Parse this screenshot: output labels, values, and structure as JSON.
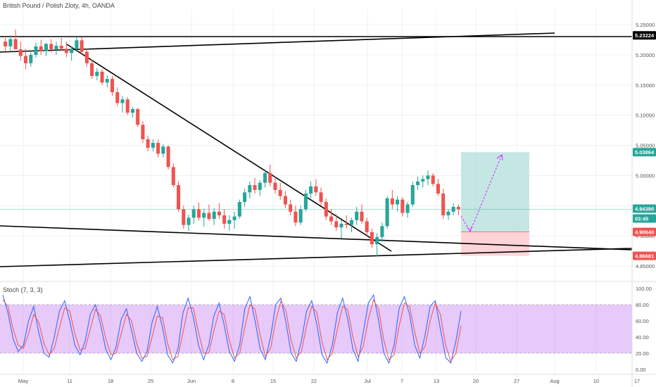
{
  "header": {
    "title": "British Pound / Polish Zloty, 4h, OANDA"
  },
  "indicator": {
    "title": "Stoch (7, 3, 3)"
  },
  "colors": {
    "up": "#26a69a",
    "down": "#ef5350",
    "trendline": "#000000",
    "stoch_k": "#2962ff",
    "stoch_d": "#ef5350",
    "stoch_band": "#c987f5",
    "target_zone": "#b2dfdb",
    "stop_zone": "#ffcdd2",
    "arrow": "#e040fb",
    "price_line": "#26a69a"
  },
  "chart_data": [
    {
      "type": "candlestick",
      "title": "",
      "xlabel": "",
      "ylabel": "",
      "x_ticks": [
        "May",
        "11",
        "18",
        "25",
        "Jun",
        "8",
        "15",
        "22",
        "Jul",
        "7",
        "13",
        "20",
        "27",
        "Aug",
        "10",
        "17"
      ],
      "y_ticks": [
        "5.25000",
        "5.20000",
        "5.15000",
        "5.10000",
        "5.05000",
        "5.00000",
        "4.95000",
        "4.90000",
        "4.85000"
      ],
      "ylim": [
        4.845,
        5.255
      ],
      "price_tags": [
        {
          "value": 5.23224,
          "label": "5.23224",
          "color": "#000000"
        },
        {
          "value": 5.03864,
          "label": "5.03864",
          "color": "#26a69a"
        },
        {
          "value": 4.9439,
          "label": "4.94390",
          "color": "#26a69a"
        },
        {
          "value": 4.9439,
          "label": "03:45",
          "color": "#26a69a"
        },
        {
          "value": 4.9064,
          "label": "4.90640",
          "color": "#ef5350"
        },
        {
          "value": 4.86681,
          "label": "4.86681",
          "color": "#ef5350"
        }
      ],
      "series": [
        {
          "values": [
            [
              5.222,
              5.228,
              5.205,
              5.214
            ],
            [
              5.214,
              5.232,
              5.206,
              5.226
            ],
            [
              5.226,
              5.242,
              5.215,
              5.209
            ],
            [
              5.209,
              5.222,
              5.19,
              5.198
            ],
            [
              5.198,
              5.21,
              5.176,
              5.186
            ],
            [
              5.186,
              5.204,
              5.18,
              5.2
            ],
            [
              5.2,
              5.22,
              5.195,
              5.214
            ],
            [
              5.214,
              5.225,
              5.2,
              5.206
            ],
            [
              5.206,
              5.22,
              5.198,
              5.218
            ],
            [
              5.218,
              5.226,
              5.204,
              5.209
            ],
            [
              5.209,
              5.222,
              5.2,
              5.215
            ],
            [
              5.215,
              5.228,
              5.206,
              5.21
            ],
            [
              5.21,
              5.222,
              5.196,
              5.203
            ],
            [
              5.203,
              5.214,
              5.19,
              5.21
            ],
            [
              5.21,
              5.23,
              5.205,
              5.224
            ],
            [
              5.224,
              5.229,
              5.2,
              5.205
            ],
            [
              5.205,
              5.21,
              5.18,
              5.186
            ],
            [
              5.186,
              5.192,
              5.16,
              5.165
            ],
            [
              5.165,
              5.178,
              5.158,
              5.172
            ],
            [
              5.172,
              5.176,
              5.15,
              5.154
            ],
            [
              5.154,
              5.166,
              5.146,
              5.16
            ],
            [
              5.16,
              5.165,
              5.132,
              5.138
            ],
            [
              5.138,
              5.146,
              5.115,
              5.12
            ],
            [
              5.12,
              5.132,
              5.104,
              5.126
            ],
            [
              5.126,
              5.13,
              5.1,
              5.104
            ],
            [
              5.104,
              5.114,
              5.096,
              5.11
            ],
            [
              5.11,
              5.112,
              5.08,
              5.084
            ],
            [
              5.084,
              5.09,
              5.054,
              5.06
            ],
            [
              5.06,
              5.066,
              5.04,
              5.046
            ],
            [
              5.046,
              5.06,
              5.04,
              5.054
            ],
            [
              5.054,
              5.06,
              5.03,
              5.036
            ],
            [
              5.036,
              5.052,
              5.03,
              5.048
            ],
            [
              5.048,
              5.05,
              5.01,
              5.014
            ],
            [
              5.014,
              5.02,
              4.98,
              4.984
            ],
            [
              4.984,
              4.99,
              4.94,
              4.944
            ],
            [
              4.944,
              4.95,
              4.912,
              4.918
            ],
            [
              4.918,
              4.935,
              4.908,
              4.93
            ],
            [
              4.93,
              4.95,
              4.92,
              4.944
            ],
            [
              4.944,
              4.955,
              4.925,
              4.93
            ],
            [
              4.93,
              4.945,
              4.915,
              4.938
            ],
            [
              4.938,
              4.952,
              4.925,
              4.928
            ],
            [
              4.928,
              4.946,
              4.918,
              4.94
            ],
            [
              4.94,
              4.954,
              4.928,
              4.934
            ],
            [
              4.934,
              4.944,
              4.912,
              4.92
            ],
            [
              4.92,
              4.934,
              4.908,
              4.926
            ],
            [
              4.926,
              4.94,
              4.912,
              4.932
            ],
            [
              4.932,
              4.96,
              4.928,
              4.956
            ],
            [
              4.956,
              4.978,
              4.948,
              4.972
            ],
            [
              4.972,
              4.99,
              4.962,
              4.984
            ],
            [
              4.984,
              4.996,
              4.97,
              4.976
            ],
            [
              4.976,
              4.992,
              4.966,
              4.988
            ],
            [
              4.988,
              5.01,
              4.98,
              5.004
            ],
            [
              5.004,
              5.018,
              4.982,
              4.988
            ],
            [
              4.988,
              4.998,
              4.97,
              4.976
            ],
            [
              4.976,
              4.988,
              4.96,
              4.966
            ],
            [
              4.966,
              4.974,
              4.946,
              4.952
            ],
            [
              4.952,
              4.96,
              4.934,
              4.94
            ],
            [
              4.94,
              4.95,
              4.916,
              4.922
            ],
            [
              4.922,
              4.95,
              4.918,
              4.944
            ],
            [
              4.944,
              4.976,
              4.94,
              4.97
            ],
            [
              4.97,
              4.99,
              4.962,
              4.982
            ],
            [
              4.982,
              4.994,
              4.966,
              4.972
            ],
            [
              4.972,
              4.98,
              4.95,
              4.956
            ],
            [
              4.956,
              4.962,
              4.926,
              4.932
            ],
            [
              4.932,
              4.944,
              4.918,
              4.924
            ],
            [
              4.924,
              4.936,
              4.908,
              4.914
            ],
            [
              4.914,
              4.926,
              4.896,
              4.92
            ],
            [
              4.92,
              4.934,
              4.912,
              4.918
            ],
            [
              4.918,
              4.93,
              4.906,
              4.926
            ],
            [
              4.926,
              4.948,
              4.918,
              4.94
            ],
            [
              4.94,
              4.952,
              4.92,
              4.924
            ],
            [
              4.924,
              4.93,
              4.9,
              4.906
            ],
            [
              4.906,
              4.912,
              4.88,
              4.886
            ],
            [
              4.886,
              4.904,
              4.866,
              4.898
            ],
            [
              4.898,
              4.922,
              4.89,
              4.916
            ],
            [
              4.916,
              4.966,
              4.912,
              4.962
            ],
            [
              4.962,
              4.976,
              4.944,
              4.952
            ],
            [
              4.952,
              4.966,
              4.94,
              4.96
            ],
            [
              4.96,
              4.964,
              4.932,
              4.938
            ],
            [
              4.938,
              4.956,
              4.93,
              4.952
            ],
            [
              4.952,
              4.99,
              4.948,
              4.984
            ],
            [
              4.984,
              4.998,
              4.976,
              4.99
            ],
            [
              4.99,
              5.0,
              4.98,
              4.994
            ],
            [
              4.994,
              5.008,
              4.984,
              5.0
            ],
            [
              5.0,
              5.004,
              4.982,
              4.986
            ],
            [
              4.986,
              4.994,
              4.966,
              4.97
            ],
            [
              4.97,
              4.978,
              4.928,
              4.934
            ],
            [
              4.934,
              4.944,
              4.926,
              4.94
            ],
            [
              4.94,
              4.954,
              4.934,
              4.948
            ],
            [
              4.948,
              4.952,
              4.934,
              4.944
            ]
          ]
        }
      ]
    },
    {
      "type": "line",
      "title": "",
      "y_ticks": [
        "100.00",
        "80.00",
        "60.00",
        "40.00",
        "20.00",
        "0.00"
      ],
      "ylim": [
        -3,
        103
      ],
      "band": [
        20,
        80
      ],
      "series": [
        {
          "name": "",
          "values": [
            92,
            70,
            38,
            22,
            30,
            60,
            78,
            45,
            20,
            15,
            40,
            72,
            85,
            60,
            30,
            18,
            35,
            68,
            80,
            55,
            25,
            12,
            28,
            62,
            75,
            48,
            20,
            10,
            22,
            58,
            78,
            52,
            18,
            8,
            25,
            70,
            88,
            65,
            30,
            12,
            30,
            66,
            82,
            55,
            22,
            10,
            30,
            75,
            90,
            60,
            25,
            12,
            40,
            80,
            88,
            58,
            20,
            10,
            35,
            72,
            85,
            55,
            18,
            8,
            30,
            70,
            88,
            62,
            25,
            10,
            45,
            82,
            92,
            60,
            20,
            8,
            30,
            76,
            90,
            68,
            30,
            14,
            42,
            78,
            85,
            50,
            15,
            8,
            35,
            72
          ]
        },
        {
          "name": "",
          "values": [
            86,
            78,
            50,
            30,
            26,
            44,
            68,
            58,
            32,
            18,
            26,
            52,
            76,
            72,
            44,
            24,
            26,
            50,
            74,
            66,
            38,
            18,
            20,
            44,
            68,
            60,
            32,
            14,
            16,
            40,
            66,
            64,
            32,
            12,
            16,
            46,
            76,
            76,
            46,
            20,
            20,
            48,
            72,
            68,
            36,
            14,
            20,
            52,
            80,
            74,
            42,
            16,
            26,
            60,
            84,
            72,
            36,
            14,
            22,
            54,
            78,
            70,
            34,
            12,
            20,
            50,
            78,
            74,
            40,
            16,
            28,
            62,
            86,
            74,
            36,
            12,
            18,
            54,
            82,
            78,
            46,
            20,
            28,
            60,
            82,
            68,
            30,
            10,
            20,
            54
          ]
        }
      ]
    }
  ]
}
